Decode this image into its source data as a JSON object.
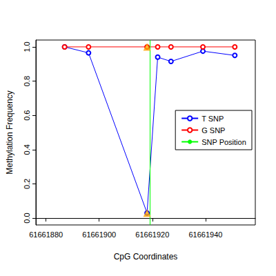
{
  "chart_data": {
    "type": "line",
    "xlabel": "CpG Coordinates",
    "ylabel": "Methylation Frequency",
    "xlim": [
      61661876.2,
      61661958.7
    ],
    "xticks": [
      61661880,
      61661900,
      61661920,
      61661940
    ],
    "ylim": [
      -0.04,
      1.04
    ],
    "yticks": [
      {
        "value": 0,
        "label": "0.0"
      },
      0.2,
      0.4,
      0.6,
      0.8,
      {
        "value": 1,
        "label": "1.0"
      }
    ],
    "grid": false,
    "legend": "right",
    "series": [
      {
        "name": "T SNP",
        "color": "#0000ff",
        "marker": "circle",
        "line_style": "solid",
        "x": [
          61661887,
          61661896,
          61661918,
          61661922,
          61661927,
          61661939,
          61661951
        ],
        "values": [
          1.0,
          0.965,
          0.03,
          0.94,
          0.915,
          0.975,
          0.95
        ]
      },
      {
        "name": "G SNP",
        "color": "#ff0000",
        "marker": "circle",
        "line_style": "solid",
        "x": [
          61661887,
          61661896,
          61661918,
          61661922,
          61661927,
          61661939,
          61661951
        ],
        "values": [
          1.0,
          1.0,
          1.0,
          1.0,
          1.0,
          1.0,
          1.0
        ]
      },
      {
        "name": "SNP Position",
        "color": "#00ff00",
        "type": "vline",
        "line_style": "solid",
        "x": [
          61661919
        ]
      }
    ],
    "snp_points": {
      "color": "#ffa500",
      "marker": "triangle",
      "x": [
        61661918,
        61661918
      ],
      "values": [
        0.03,
        1.0
      ]
    }
  }
}
